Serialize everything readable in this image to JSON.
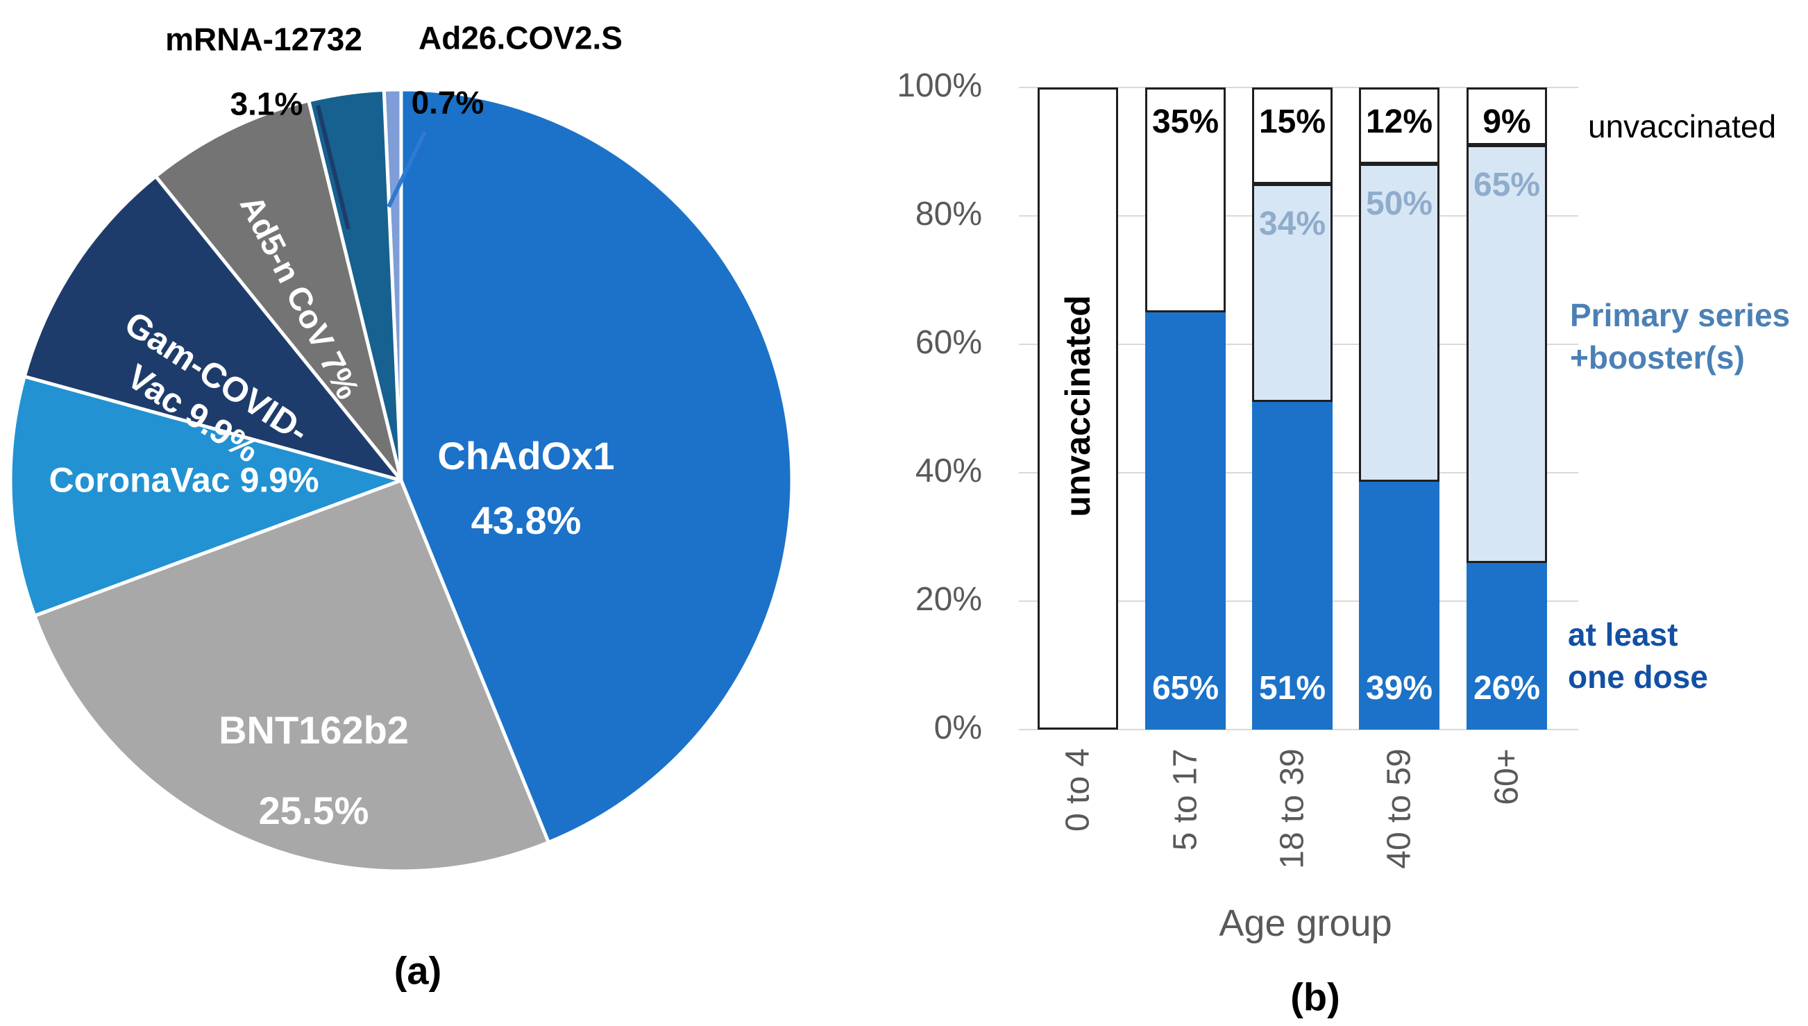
{
  "figure": {
    "panel_a_label": "(a)",
    "panel_b_label": "(b)"
  },
  "chart_data": [
    {
      "id": "vaccine-type-pie",
      "type": "pie",
      "panel": "(a)",
      "start_angle_deg": 0,
      "direction": "clockwise",
      "slices": [
        {
          "name": "ChAdOx1",
          "value": 43.8,
          "color": "#1B72C8",
          "text_color": "#FFFFFF",
          "label_placement": "inside",
          "label_lines": [
            "ChAdOx1",
            "43.8%"
          ]
        },
        {
          "name": "BNT162b2",
          "value": 25.5,
          "color": "#A8A8A8",
          "text_color": "#FFFFFF",
          "label_placement": "inside",
          "label_lines": [
            "BNT162b2",
            "25.5%"
          ]
        },
        {
          "name": "CoronaVac",
          "value": 9.9,
          "color": "#2292D3",
          "text_color": "#FFFFFF",
          "label_placement": "inside",
          "label_lines": [
            "CoronaVac 9.9%"
          ]
        },
        {
          "name": "Gam-COVID-Vac",
          "value": 9.9,
          "color": "#1E3C6B",
          "text_color": "#FFFFFF",
          "label_placement": "inside",
          "label_lines": [
            "Gam-COVID-",
            "Vac 9.9%"
          ]
        },
        {
          "name": "Ad5-n CoV",
          "value": 7,
          "color": "#747474",
          "text_color": "#FFFFFF",
          "label_placement": "inside",
          "label_lines": [
            "Ad5-n CoV 7%"
          ]
        },
        {
          "name": "mRNA-12732",
          "value": 3.1,
          "color": "#16618F",
          "text_color": "#000000",
          "label_placement": "outside",
          "label_lines": [
            "mRNA-12732",
            "3.1%"
          ]
        },
        {
          "name": "Ad26.COV2.S",
          "value": 0.7,
          "color": "#7F9DD7",
          "text_color": "#000000",
          "label_placement": "outside",
          "label_lines": [
            "Ad26.COV2.S",
            "0.7%"
          ]
        }
      ]
    },
    {
      "id": "age-vaccination-stacked-bar",
      "type": "bar",
      "stacked": true,
      "panel": "(b)",
      "xlabel": "Age group",
      "ylim": [
        0,
        100
      ],
      "grid": true,
      "y_tick_labels": [
        "100%",
        "80%",
        "60%",
        "40%",
        "20%",
        "0%"
      ],
      "categories": [
        "0 to 4",
        "5 to 17",
        "18 to 39",
        "40 to 59",
        "60+"
      ],
      "series": [
        {
          "name": "at least one dose",
          "color": "#1B72C8",
          "label_color": "#FFFFFF",
          "values": [
            0,
            65,
            51,
            39,
            26
          ],
          "value_labels": [
            "",
            "65%",
            "51%",
            "39%",
            "26%"
          ]
        },
        {
          "name": "Primary series +booster(s)",
          "color": "#D7E6F5",
          "label_color": "#8FACCB",
          "values": [
            0,
            0,
            34,
            50,
            65
          ],
          "value_labels": [
            "",
            "",
            "34%",
            "50%",
            "65%"
          ]
        },
        {
          "name": "unvaccinated",
          "color": "#FFFFFF",
          "label_color": "#000000",
          "values": [
            100,
            35,
            15,
            12,
            9
          ],
          "value_labels": [
            "",
            "35%",
            "15%",
            "12%",
            "9%"
          ]
        }
      ],
      "in_bar_annotation": {
        "category": "0 to 4",
        "text": "unvaccinated"
      },
      "legend": {
        "unvaccinated": {
          "text": "unvaccinated",
          "color": "#000000"
        },
        "booster": {
          "text_lines": [
            "Primary series",
            "+booster(s)"
          ],
          "color": "#4B80B5"
        },
        "at_least_one_dose": {
          "text_lines": [
            "at least",
            "one dose"
          ],
          "color": "#1150A4"
        }
      },
      "legend_position": "right"
    }
  ]
}
